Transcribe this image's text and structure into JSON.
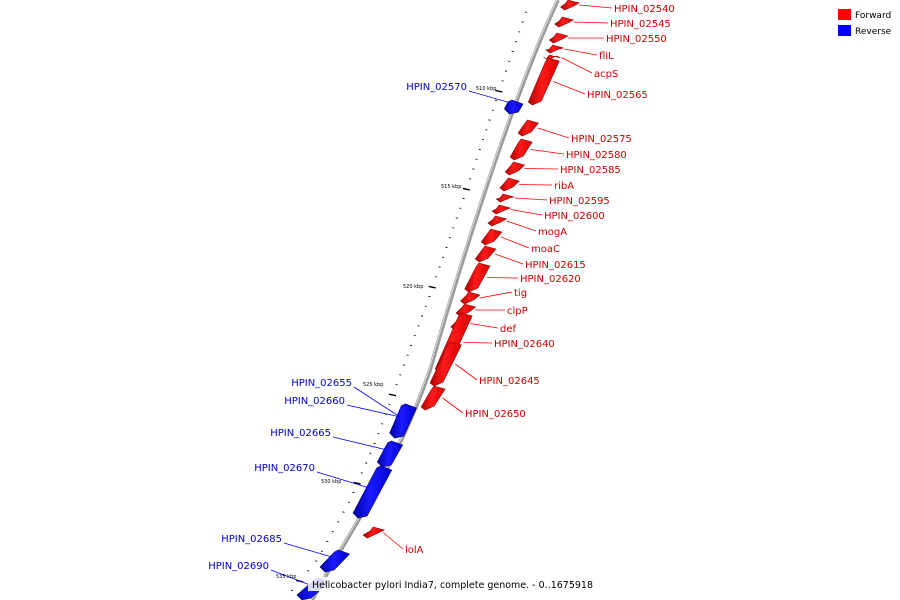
{
  "legend": {
    "forward_label": "Forward",
    "reverse_label": "Reverse",
    "forward_color": "#ff0000",
    "reverse_color": "#0000ff"
  },
  "caption": "Helicobacter pylori India7, complete genome. - 0..1675918",
  "scale_labels": [
    "510 kbp",
    "515 kbp",
    "520 kbp",
    "525 kbp",
    "530 kbp",
    "535 kbp"
  ],
  "forward_genes": [
    "HPIN_02540",
    "HPIN_02545",
    "HPIN_02550",
    "fliL",
    "acpS",
    "HPIN_02565",
    "HPIN_02575",
    "HPIN_02580",
    "HPIN_02585",
    "ribA",
    "HPIN_02595",
    "HPIN_02600",
    "mogA",
    "moaC",
    "HPIN_02615",
    "HPIN_02620",
    "tig",
    "clpP",
    "def",
    "HPIN_02640",
    "HPIN_02645",
    "HPIN_02650",
    "lolA"
  ],
  "reverse_genes": [
    "HPIN_02570",
    "HPIN_02655",
    "HPIN_02660",
    "HPIN_02665",
    "HPIN_02670",
    "HPIN_02685",
    "HPIN_02690"
  ]
}
